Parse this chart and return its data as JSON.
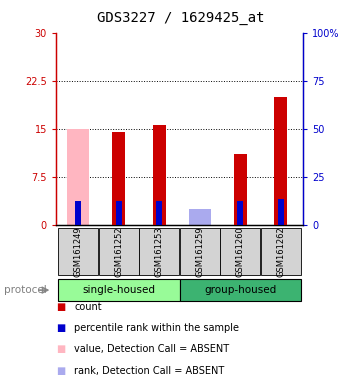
{
  "title": "GDS3227 / 1629425_at",
  "samples": [
    "GSM161249",
    "GSM161252",
    "GSM161253",
    "GSM161259",
    "GSM161260",
    "GSM161262"
  ],
  "group_labels": [
    "single-housed",
    "group-housed"
  ],
  "red_values": [
    0,
    14.5,
    15.5,
    0,
    11.0,
    20.0
  ],
  "blue_values": [
    12.5,
    12.5,
    12.5,
    0,
    12.5,
    13.5
  ],
  "pink_values": [
    15.0,
    0,
    0,
    0,
    0,
    0
  ],
  "lightblue_values": [
    0,
    0,
    0,
    2.5,
    0,
    0
  ],
  "ylim_left": [
    0,
    30
  ],
  "ylim_right": [
    0,
    100
  ],
  "yticks_left": [
    0,
    7.5,
    15,
    22.5,
    30
  ],
  "ytick_labels_left": [
    "0",
    "7.5",
    "15",
    "22.5",
    "30"
  ],
  "yticks_right": [
    0,
    25,
    50,
    75,
    100
  ],
  "ytick_labels_right": [
    "0",
    "25",
    "50",
    "75",
    "100%"
  ],
  "red_color": "#CC0000",
  "blue_color": "#0000CC",
  "pink_color": "#FFB6C1",
  "lightblue_color": "#AAAAEE",
  "plot_bg": "#ffffff",
  "title_fontsize": 10,
  "tick_fontsize": 7,
  "sample_label_bg": "#d3d3d3",
  "group1_color": "#98FB98",
  "group2_color": "#3CB371"
}
